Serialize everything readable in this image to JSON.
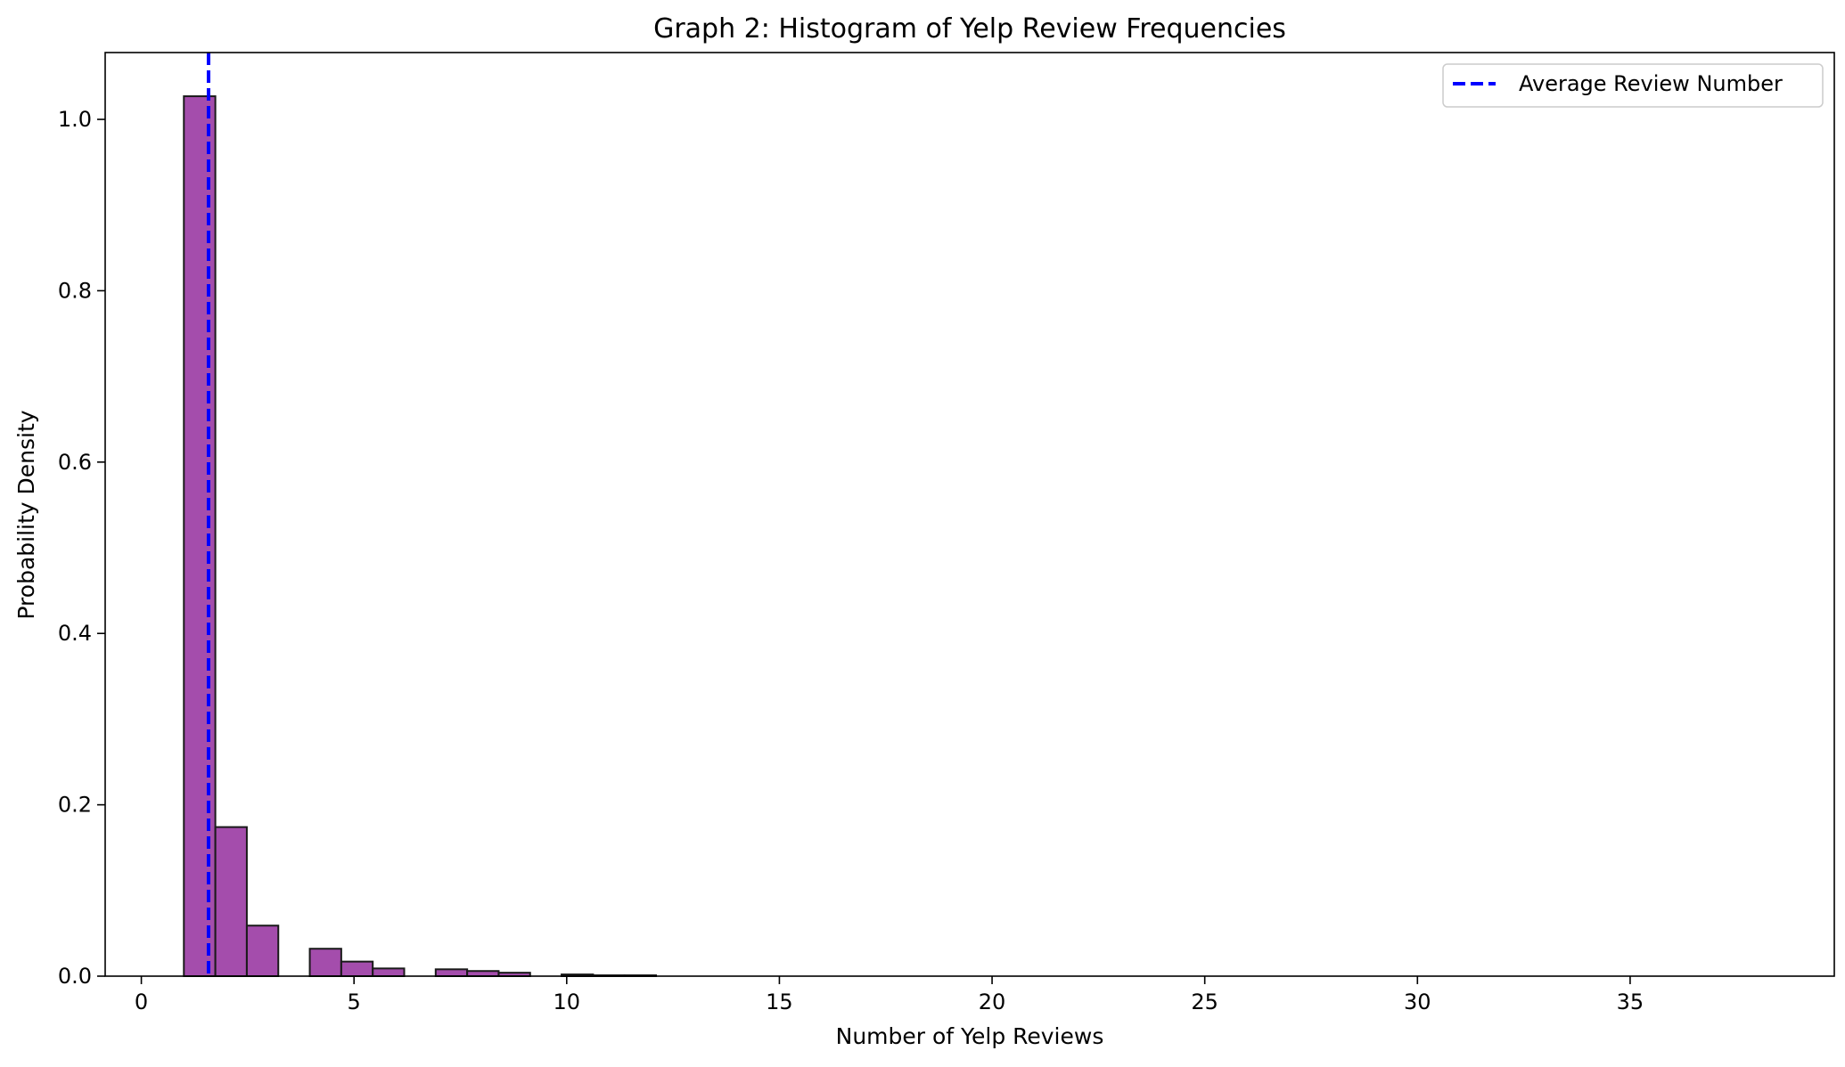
{
  "chart_data": {
    "type": "bar",
    "title": "Graph 2: Histogram of Yelp Review Frequencies",
    "xlabel": "Number of Yelp Reviews",
    "ylabel": "Probability Density",
    "xlim": [
      -0.85,
      39.8
    ],
    "ylim": [
      0,
      1.078
    ],
    "xticks": [
      "0",
      "5",
      "10",
      "15",
      "20",
      "25",
      "30",
      "35"
    ],
    "yticks": [
      "0.0",
      "0.2",
      "0.4",
      "0.6",
      "0.8",
      "1.0"
    ],
    "grid": false,
    "legend_position": "top-right",
    "bin_width": 0.74,
    "bins": [
      {
        "x0": 1.0,
        "x1": 1.74,
        "density": 1.027
      },
      {
        "x0": 1.74,
        "x1": 2.48,
        "density": 0.174
      },
      {
        "x0": 2.48,
        "x1": 3.22,
        "density": 0.059
      },
      {
        "x0": 3.22,
        "x1": 3.96,
        "density": 0.0
      },
      {
        "x0": 3.96,
        "x1": 4.7,
        "density": 0.032
      },
      {
        "x0": 4.7,
        "x1": 5.44,
        "density": 0.017
      },
      {
        "x0": 5.44,
        "x1": 6.18,
        "density": 0.009
      },
      {
        "x0": 6.18,
        "x1": 6.92,
        "density": 0.0
      },
      {
        "x0": 6.92,
        "x1": 7.66,
        "density": 0.008
      },
      {
        "x0": 7.66,
        "x1": 8.4,
        "density": 0.006
      },
      {
        "x0": 8.4,
        "x1": 9.14,
        "density": 0.004
      },
      {
        "x0": 9.14,
        "x1": 9.88,
        "density": 0.0
      },
      {
        "x0": 9.88,
        "x1": 10.62,
        "density": 0.002
      },
      {
        "x0": 10.62,
        "x1": 11.36,
        "density": 0.001
      },
      {
        "x0": 11.36,
        "x1": 12.1,
        "density": 0.001
      }
    ],
    "mean_line": {
      "x": 1.58,
      "label": "Average Review Number",
      "style": "dashed"
    },
    "colors": {
      "bar_fill": "#9a3aa3",
      "bar_edge": "#1a1a1a",
      "mean_line": "#0000ff"
    }
  }
}
